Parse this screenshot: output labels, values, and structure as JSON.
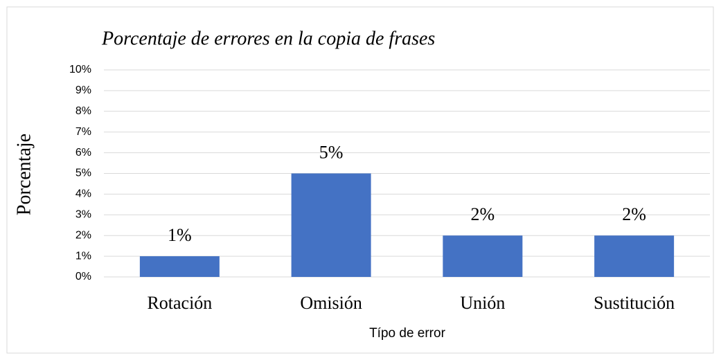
{
  "chart_data": {
    "type": "bar",
    "title": "Porcentaje de errores en la copia de frases",
    "y_label": "Porcentaje",
    "x_label": "Típo de error",
    "categories": [
      "Rotación",
      "Omisión",
      "Unión",
      "Sustitución"
    ],
    "values": [
      1,
      5,
      2,
      2
    ],
    "value_labels": [
      "1%",
      "5%",
      "2%",
      "2%"
    ],
    "color": "#4472c4",
    "ylim": [
      0,
      10
    ],
    "yticks": [
      {
        "value": 0,
        "label": "0%"
      },
      {
        "value": 1,
        "label": "1%"
      },
      {
        "value": 2,
        "label": "2%"
      },
      {
        "value": 3,
        "label": "3%"
      },
      {
        "value": 4,
        "label": "4%"
      },
      {
        "value": 5,
        "label": "5%"
      },
      {
        "value": 6,
        "label": "6%"
      },
      {
        "value": 7,
        "label": "7%"
      },
      {
        "value": 8,
        "label": "8%"
      },
      {
        "value": 9,
        "label": "9%"
      },
      {
        "value": 10,
        "label": "10%"
      }
    ],
    "grid": true
  }
}
